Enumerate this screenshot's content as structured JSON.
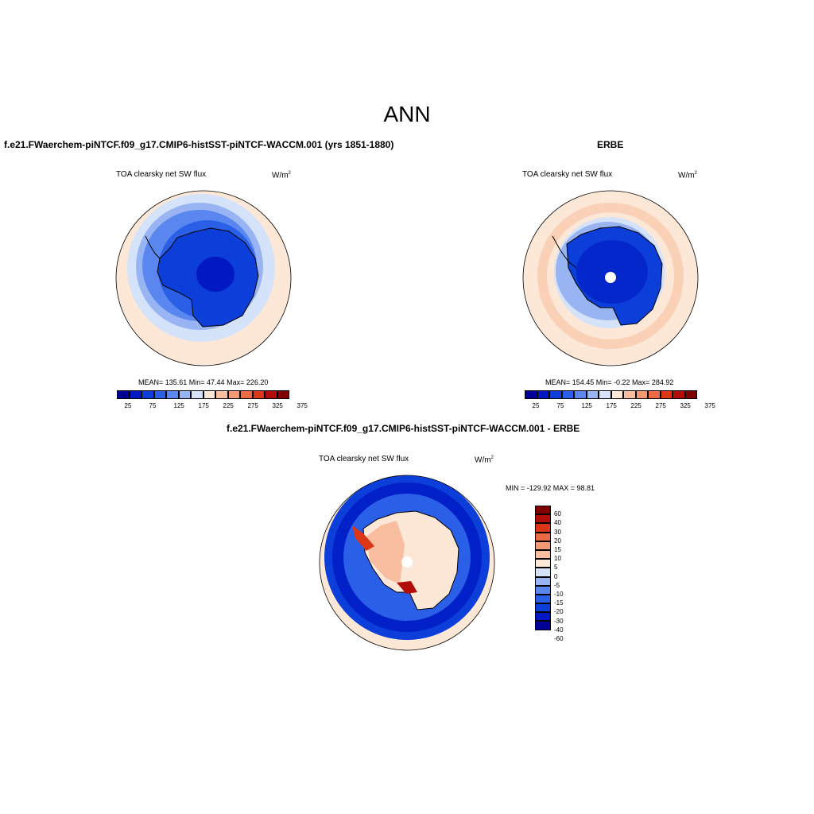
{
  "title": "ANN",
  "palette": {
    "ref": [
      "#000096",
      "#0019c3",
      "#0c3ed9",
      "#2a5fe8",
      "#5a87ef",
      "#98b4f3",
      "#d4e3fa",
      "#fde7d6",
      "#f8be9f",
      "#f39a74",
      "#ec6b45",
      "#dd3617",
      "#b20d0a",
      "#800000"
    ],
    "diff": [
      "#800000",
      "#b20d0a",
      "#dd3617",
      "#ec6b45",
      "#f39a74",
      "#f8be9f",
      "#fde7d6",
      "#d4e3fa",
      "#98b4f3",
      "#5a87ef",
      "#2a5fe8",
      "#0c3ed9",
      "#0019c3",
      "#000096"
    ]
  },
  "panel1": {
    "title": "f.e21.FWaerchem-piNTCF.f09_g17.CMIP6-histSST-piNTCF-WACCM.001 (yrs 1851-1880)",
    "var": "TOA clearsky net SW flux",
    "units": "W/m",
    "units_sup": "2",
    "stats": "MEAN= 135.61  Min=  47.44  Max= 226.20",
    "ticks": [
      "25",
      "75",
      "125",
      "175",
      "225",
      "275",
      "325",
      "375"
    ]
  },
  "panel2": {
    "title": "ERBE",
    "var": "TOA clearsky net SW flux",
    "units": "W/m",
    "units_sup": "2",
    "stats": "MEAN= 154.45  Min=  -0.22  Max= 284.92",
    "ticks": [
      "25",
      "75",
      "125",
      "175",
      "225",
      "275",
      "325",
      "375"
    ]
  },
  "panel3": {
    "title": "f.e21.FWaerchem-piNTCF.f09_g17.CMIP6-histSST-piNTCF-WACCM.001 - ERBE",
    "var": "TOA clearsky net SW flux",
    "units": "W/m",
    "units_sup": "2",
    "stats": "MIN = -129.92 MAX =  98.81",
    "ticks": [
      "60",
      "40",
      "30",
      "20",
      "15",
      "10",
      "5",
      "0",
      "-5",
      "-10",
      "-15",
      "-20",
      "-30",
      "-40",
      "-60"
    ]
  }
}
